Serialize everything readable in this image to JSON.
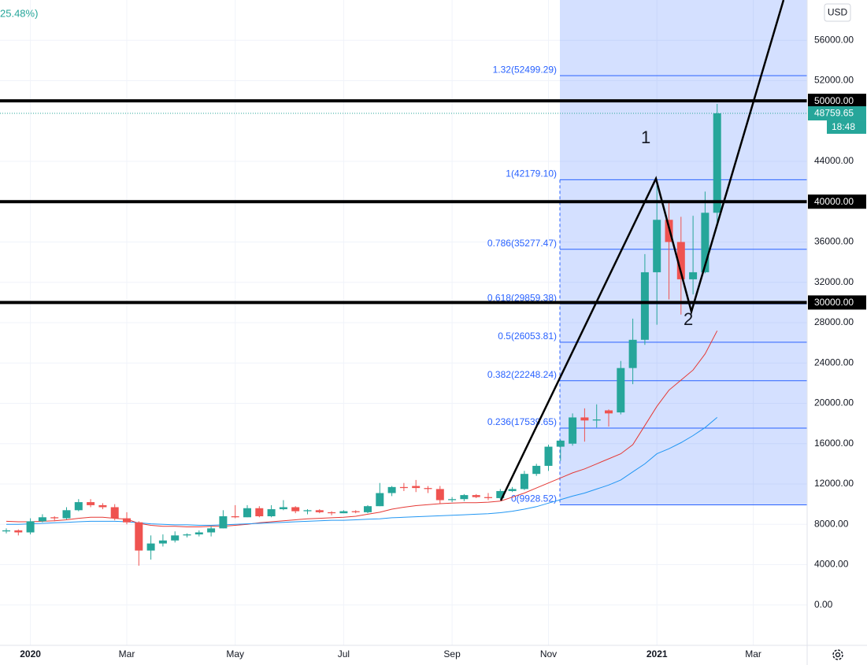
{
  "chart_data": {
    "type": "candlestick",
    "header_change": "25.48%)",
    "currency": "USD",
    "categories": [
      null,
      null,
      "2020",
      null,
      null,
      null,
      null,
      null,
      null,
      null,
      "Mar",
      null,
      null,
      null,
      null,
      null,
      null,
      null,
      null,
      "May",
      null,
      null,
      null,
      null,
      null,
      null,
      null,
      null,
      "Jul",
      null,
      null,
      null,
      null,
      null,
      null,
      null,
      null,
      "Sep",
      null,
      null,
      null,
      null,
      null,
      null,
      null,
      "Nov",
      null,
      null,
      null,
      null,
      null,
      null,
      null,
      null,
      "2021",
      null,
      null,
      null,
      null,
      null,
      null,
      null,
      "Mar",
      null,
      null,
      null,
      null
    ],
    "open": [
      7300,
      7400,
      7200,
      8300,
      8700,
      8600,
      9400,
      10200,
      9900,
      9700,
      8600,
      8200,
      5400,
      6100,
      6400,
      6900,
      7000,
      7200,
      7600,
      8800,
      8700,
      9600,
      8800,
      9500,
      9700,
      9300,
      9400,
      9200,
      9100,
      9300,
      9200,
      9800,
      11100,
      11700,
      11800,
      11600,
      11500,
      10400,
      10500,
      10900,
      10700,
      10600,
      11300,
      11500,
      13000,
      13800,
      15700,
      16000,
      18600,
      18300,
      19300,
      19100,
      23500,
      26300,
      33000,
      38200,
      36000,
      32300,
      33000,
      38900,
      null,
      null,
      null,
      null,
      null,
      null,
      null
    ],
    "high": [
      7600,
      7500,
      8600,
      9000,
      8800,
      9700,
      10500,
      10500,
      10100,
      10000,
      9200,
      8300,
      6900,
      7000,
      7300,
      7100,
      7400,
      7800,
      9400,
      9900,
      9900,
      9800,
      9900,
      10400,
      9800,
      9500,
      9500,
      9300,
      9400,
      9400,
      9900,
      12100,
      11800,
      12100,
      12400,
      11800,
      11800,
      10700,
      11000,
      11000,
      11100,
      11500,
      11700,
      13300,
      14000,
      15900,
      16400,
      19000,
      19500,
      19900,
      19400,
      24200,
      28400,
      34800,
      42000,
      40100,
      38500,
      38600,
      41000,
      49700,
      null,
      null,
      null,
      null,
      null,
      null,
      null
    ],
    "low": [
      7100,
      6900,
      7000,
      8200,
      8300,
      8500,
      9300,
      9700,
      9500,
      8400,
      8000,
      3900,
      4500,
      5800,
      6200,
      6700,
      6800,
      6800,
      7600,
      8600,
      8700,
      8700,
      8700,
      9400,
      9100,
      9000,
      9100,
      8900,
      9100,
      9100,
      9100,
      9800,
      10800,
      11300,
      11200,
      11100,
      10000,
      10200,
      10300,
      10600,
      10400,
      10500,
      11200,
      11400,
      12800,
      13300,
      14300,
      15800,
      16200,
      17600,
      17700,
      18900,
      21900,
      25800,
      27800,
      30300,
      28800,
      30800,
      32900,
      38000,
      null,
      null,
      null,
      null,
      null,
      null,
      null
    ],
    "close": [
      7400,
      7200,
      8300,
      8700,
      8600,
      9400,
      10200,
      9900,
      9700,
      8600,
      8200,
      5400,
      6100,
      6400,
      6900,
      7000,
      7200,
      7600,
      8800,
      8700,
      9600,
      8800,
      9500,
      9700,
      9300,
      9400,
      9200,
      9100,
      9300,
      9200,
      9800,
      11100,
      11700,
      11600,
      11600,
      11500,
      10400,
      10500,
      10900,
      10700,
      10600,
      11300,
      11500,
      13000,
      13800,
      15700,
      16300,
      18600,
      18300,
      18400,
      19000,
      23500,
      26300,
      33000,
      38200,
      36000,
      32300,
      33000,
      38900,
      48759.65,
      null,
      null,
      null,
      null,
      null,
      null,
      null
    ],
    "up_color": "#26a69a",
    "down_color": "#ef5350",
    "series": [
      {
        "color": "#e53935",
        "values": [
          8300,
          8250,
          8250,
          8300,
          8350,
          8450,
          8600,
          8700,
          8700,
          8600,
          8500,
          8100,
          7900,
          7800,
          7800,
          7750,
          7750,
          7800,
          7800,
          7900,
          8000,
          8150,
          8250,
          8350,
          8450,
          8550,
          8600,
          8650,
          8700,
          8800,
          9000,
          9200,
          9500,
          9700,
          9850,
          9950,
          10050,
          10100,
          10150,
          10150,
          10200,
          10300,
          10700,
          11100,
          11600,
          12100,
          12600,
          13100,
          13500,
          14000,
          14500,
          15000,
          15900,
          17800,
          19700,
          21300,
          22300,
          23300,
          24900,
          27200,
          null,
          null,
          null,
          null,
          null,
          null,
          null
        ]
      },
      {
        "color": "#2196f3",
        "values": [
          8000,
          8000,
          8050,
          8100,
          8150,
          8200,
          8250,
          8300,
          8300,
          8300,
          8250,
          8150,
          8050,
          8000,
          7950,
          7950,
          7900,
          7900,
          7950,
          8000,
          8050,
          8100,
          8150,
          8200,
          8250,
          8300,
          8350,
          8400,
          8400,
          8450,
          8500,
          8550,
          8650,
          8700,
          8750,
          8800,
          8850,
          8900,
          8950,
          9000,
          9050,
          9150,
          9300,
          9500,
          9750,
          10100,
          10450,
          10800,
          11100,
          11500,
          11900,
          12400,
          13200,
          14000,
          15000,
          15500,
          16100,
          16800,
          17600,
          18600,
          null,
          null,
          null,
          null,
          null,
          null,
          null
        ]
      }
    ],
    "ylim": [
      -4000,
      60000
    ],
    "yticks": [
      {
        "value": 0,
        "label": "0.00"
      },
      {
        "value": 4000,
        "label": "4000.00"
      },
      {
        "value": 8000,
        "label": "8000.00"
      },
      {
        "value": 12000,
        "label": "12000.00"
      },
      {
        "value": 16000,
        "label": "16000.00"
      },
      {
        "value": 20000,
        "label": "20000.00"
      },
      {
        "value": 24000,
        "label": "24000.00"
      },
      {
        "value": 28000,
        "label": "28000.00"
      },
      {
        "value": 32000,
        "label": "32000.00"
      },
      {
        "value": 36000,
        "label": "36000.00"
      },
      {
        "value": 44000,
        "label": "44000.00"
      },
      {
        "value": 52000,
        "label": "52000.00"
      },
      {
        "value": 56000,
        "label": "56000.00"
      }
    ],
    "grid": true,
    "fib": {
      "color": "#2962ff",
      "levels": [
        {
          "value": 52499.29,
          "label": "1.32(52499.29)"
        },
        {
          "value": 42179.1,
          "label": "1(42179.10)"
        },
        {
          "value": 35277.47,
          "label": "0.786(35277.47)"
        },
        {
          "value": 29859.38,
          "label": "0.618(29859.38)"
        },
        {
          "value": 26053.81,
          "label": "0.5(26053.81)"
        },
        {
          "value": 22248.24,
          "label": "0.382(22248.24)"
        },
        {
          "value": 17539.65,
          "label": "0.236(17539.65)"
        },
        {
          "value": 9928.52,
          "label": "0(9928.52)"
        }
      ]
    },
    "hlines": [
      {
        "value": 50000,
        "label": "50000.00"
      },
      {
        "value": 40000,
        "label": "40000.00"
      },
      {
        "value": 30000,
        "label": "30000.00"
      }
    ],
    "last_price": {
      "value": 48759.65,
      "label": "48759.65",
      "countdown": "18:48"
    },
    "annotations": [
      "1",
      "2"
    ]
  }
}
